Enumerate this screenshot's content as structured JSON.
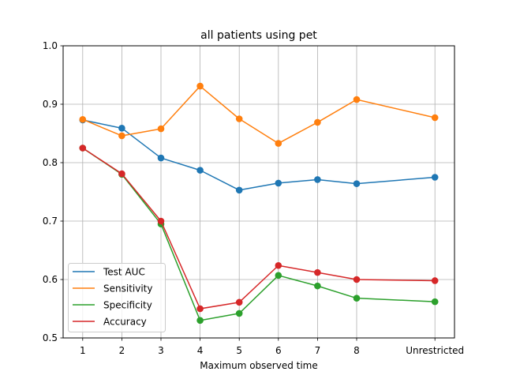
{
  "chart_data": {
    "type": "line",
    "title": "all patients using pet",
    "xlabel": "Maximum observed time",
    "ylabel": "",
    "categories": [
      "1",
      "2",
      "3",
      "4",
      "5",
      "6",
      "7",
      "8",
      "Unrestricted"
    ],
    "x": [
      1,
      2,
      3,
      4,
      5,
      6,
      7,
      8,
      10
    ],
    "ylim": [
      0.5,
      1.0
    ],
    "yticks": [
      "0.5",
      "0.6",
      "0.7",
      "0.8",
      "0.9",
      "1.0"
    ],
    "grid": true,
    "legend_position": "lower-left",
    "series": [
      {
        "name": "Test AUC",
        "color": "#1f77b4",
        "values": [
          0.873,
          0.859,
          0.808,
          0.787,
          0.753,
          0.765,
          0.771,
          0.764,
          0.775
        ]
      },
      {
        "name": "Sensitivity",
        "color": "#ff7f0e",
        "values": [
          0.874,
          0.846,
          0.858,
          0.931,
          0.875,
          0.833,
          0.869,
          0.908,
          0.877
        ]
      },
      {
        "name": "Specificity",
        "color": "#2ca02c",
        "values": [
          0.825,
          0.78,
          0.695,
          0.53,
          0.542,
          0.607,
          0.589,
          0.568,
          0.562
        ]
      },
      {
        "name": "Accuracy",
        "color": "#d62728",
        "values": [
          0.825,
          0.781,
          0.7,
          0.55,
          0.561,
          0.624,
          0.612,
          0.6,
          0.598
        ]
      }
    ]
  }
}
